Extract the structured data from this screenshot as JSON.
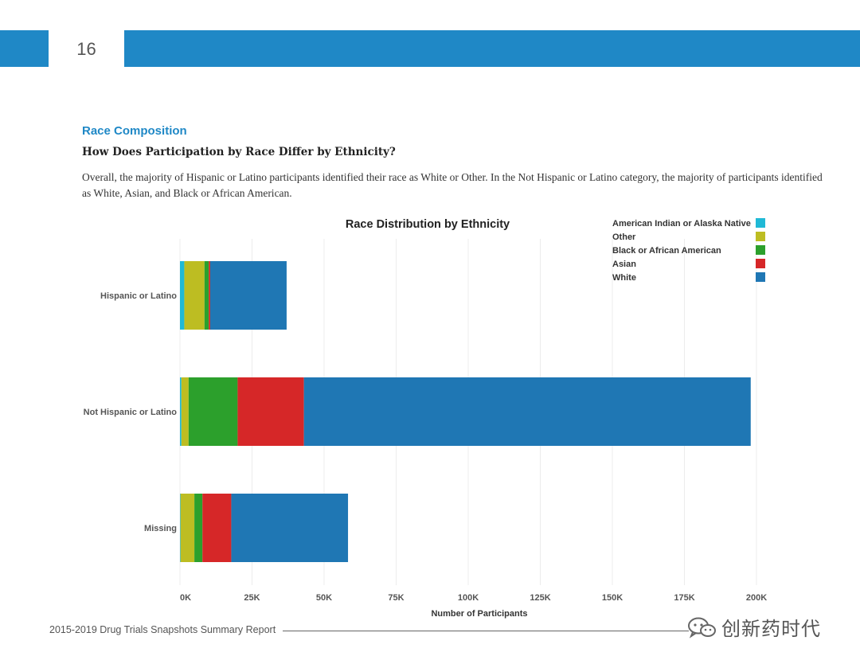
{
  "header": {
    "page_number": "16"
  },
  "section": {
    "title": "Race Composition",
    "question": "How Does Participation by Race Differ by Ethnicity?",
    "body": "Overall, the majority of Hispanic or Latino participants identified their race as White or Other. In the Not Hispanic or Latino category, the majority of participants identified as White, Asian, and Black or African American."
  },
  "footer": {
    "report_title": "2015-2019 Drug Trials Snapshots Summary Report",
    "watermark_text": "创新药时代"
  },
  "chart_data": {
    "type": "bar",
    "orientation": "horizontal",
    "stacked": true,
    "title": "Race Distribution by Ethnicity",
    "xlabel": "Number of Participants",
    "ylabel": "",
    "xlim": [
      0,
      200000
    ],
    "grid": true,
    "legend_position": "top-right",
    "categories": [
      "Hispanic or Latino",
      "Not Hispanic or Latino",
      "Missing"
    ],
    "tick_values": [
      0,
      25000,
      50000,
      75000,
      100000,
      125000,
      150000,
      175000,
      200000
    ],
    "tick_labels": [
      "0K",
      "25K",
      "50K",
      "75K",
      "100K",
      "125K",
      "150K",
      "175K",
      "200K"
    ],
    "series": [
      {
        "name": "American Indian or Alaska Native",
        "color": "#20b9d6",
        "values": [
          1500,
          500,
          200
        ]
      },
      {
        "name": "Other",
        "color": "#bdbd22",
        "values": [
          7000,
          2500,
          4800
        ]
      },
      {
        "name": "Black or African American",
        "color": "#2ca02c",
        "values": [
          1500,
          17000,
          2800
        ]
      },
      {
        "name": "Asian",
        "color": "#d62728",
        "values": [
          500,
          23000,
          10000
        ]
      },
      {
        "name": "White",
        "color": "#1f77b4",
        "values": [
          26500,
          155000,
          40500
        ]
      }
    ]
  }
}
